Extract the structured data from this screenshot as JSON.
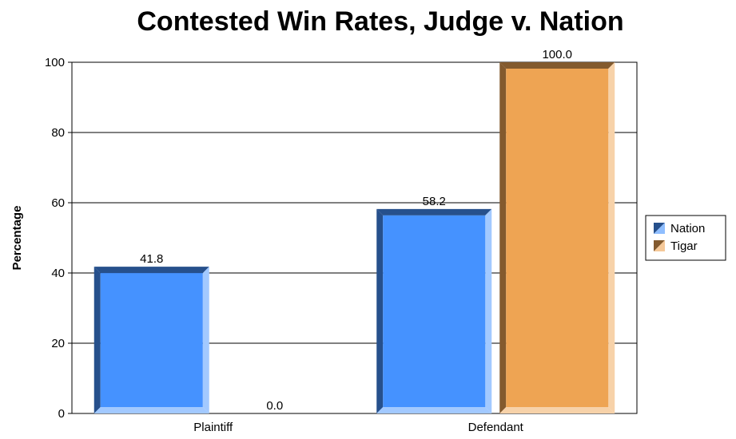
{
  "chart_data": {
    "type": "bar",
    "title": "Contested Win Rates, Judge v. Nation",
    "xlabel": "",
    "ylabel": "Percentage",
    "categories": [
      "Plaintiff",
      "Defendant"
    ],
    "series": [
      {
        "name": "Nation",
        "values": [
          41.8,
          58.2
        ],
        "value_labels": [
          "41.8",
          "58.2"
        ],
        "color": "#4592ff"
      },
      {
        "name": "Tigar",
        "values": [
          0.0,
          100.0
        ],
        "value_labels": [
          "0.0",
          "100.0"
        ],
        "color": "#eea453"
      }
    ],
    "ylim": [
      0,
      100
    ],
    "yticks": [
      0,
      20,
      40,
      60,
      80,
      100
    ],
    "ytick_labels": [
      "0",
      "20",
      "40",
      "60",
      "80",
      "100"
    ],
    "grid": true,
    "legend_position": "right"
  }
}
